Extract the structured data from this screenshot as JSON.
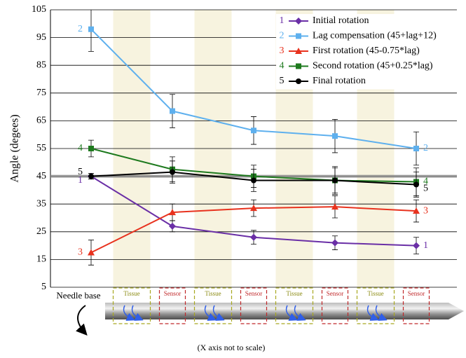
{
  "chart_data": {
    "type": "line",
    "y_label": "Angle (degees)",
    "categories": [
      null,
      null,
      null,
      null,
      null
    ],
    "ylim": [
      5,
      105
    ],
    "yticks": [
      5,
      15,
      25,
      35,
      45,
      55,
      65,
      75,
      85,
      95,
      105
    ],
    "grid": true,
    "reference_line": 45,
    "legend": "top-right",
    "series": [
      {
        "label": "1",
        "name": "Initial rotation",
        "color": "#6a2fa6",
        "marker": "diamond",
        "values": [
          45,
          27,
          23,
          21,
          20
        ],
        "errors": [
          1,
          2,
          2.5,
          2.5,
          3
        ]
      },
      {
        "label": "2",
        "name": "Lag compensation (45+lag+12)",
        "color": "#5eb0ee",
        "marker": "square",
        "values": [
          98,
          68.5,
          61.5,
          59.5,
          55
        ],
        "errors": [
          8,
          6,
          5,
          6,
          6
        ]
      },
      {
        "label": "3",
        "name": "First rotation (45-0.75*lag)",
        "color": "#e8321e",
        "marker": "triangle",
        "values": [
          17.5,
          32,
          33.5,
          34,
          32.5
        ],
        "errors": [
          4.5,
          3,
          3,
          4,
          4
        ]
      },
      {
        "label": "4",
        "name": "Second rotation (45+0.25*lag)",
        "color": "#1e7a1e",
        "marker": "square",
        "values": [
          55,
          47.5,
          45,
          43.5,
          43
        ],
        "errors": [
          3,
          4.5,
          4,
          5,
          5
        ]
      },
      {
        "label": "5",
        "name": "Final rotation",
        "color": "#000000",
        "marker": "circle",
        "values": [
          45,
          46.5,
          43.5,
          43.5,
          42
        ],
        "errors": [
          1,
          4,
          4,
          4.5,
          4.5
        ]
      }
    ],
    "diagram": {
      "base_label": "Needle base",
      "segments": [
        "Tissue",
        "Sensor",
        "Tissue",
        "Sensor",
        "Tissue",
        "Sensor",
        "Tissue",
        "Sensor"
      ],
      "note": "(X axis not to scale)"
    }
  }
}
